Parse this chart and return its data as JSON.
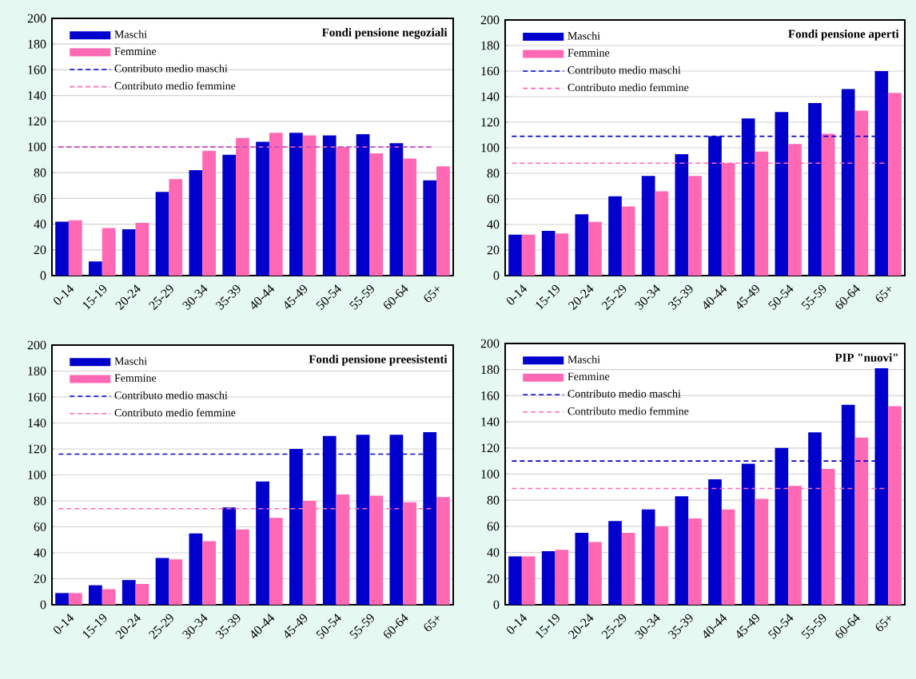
{
  "chart_data": [
    {
      "type": "bar",
      "title": "Fondi pensione negoziali",
      "categories": [
        "0-14",
        "15-19",
        "20-24",
        "25-29",
        "30-34",
        "35-39",
        "40-44",
        "45-49",
        "50-54",
        "55-59",
        "60-64",
        "65+"
      ],
      "series": [
        {
          "name": "Maschi",
          "color": "#0000cc",
          "values": [
            42,
            11,
            36,
            65,
            82,
            94,
            104,
            111,
            109,
            110,
            103,
            74
          ]
        },
        {
          "name": "Femmine",
          "color": "#ff69b4",
          "values": [
            43,
            37,
            41,
            75,
            97,
            107,
            111,
            109,
            100,
            95,
            91,
            85
          ]
        }
      ],
      "ref_lines": [
        {
          "axis": "y",
          "value": 100,
          "label": "Contributo medio maschi",
          "color": "#0000cc",
          "line_style": "dashed"
        },
        {
          "axis": "y",
          "value": 100,
          "label": "Contributo medio femmine",
          "color": "#ff69b4",
          "line_style": "dashed"
        }
      ],
      "ylim": [
        0,
        200
      ],
      "yticks": [
        0,
        20,
        40,
        60,
        80,
        100,
        120,
        140,
        160,
        180,
        200
      ],
      "grid": "y",
      "legend": "top left"
    },
    {
      "type": "bar",
      "title": "Fondi pensione aperti",
      "categories": [
        "0-14",
        "15-19",
        "20-24",
        "25-29",
        "30-34",
        "35-39",
        "40-44",
        "45-49",
        "50-54",
        "55-59",
        "60-64",
        "65+"
      ],
      "series": [
        {
          "name": "Maschi",
          "color": "#0000cc",
          "values": [
            32,
            35,
            48,
            62,
            78,
            95,
            109,
            123,
            128,
            135,
            146,
            160
          ]
        },
        {
          "name": "Femmine",
          "color": "#ff69b4",
          "values": [
            32,
            33,
            42,
            54,
            66,
            78,
            88,
            97,
            103,
            111,
            129,
            143
          ]
        }
      ],
      "ref_lines": [
        {
          "axis": "y",
          "value": 109,
          "label": "Contributo medio maschi",
          "color": "#0000cc",
          "line_style": "dashed"
        },
        {
          "axis": "y",
          "value": 88,
          "label": "Contributo medio femmine",
          "color": "#ff69b4",
          "line_style": "dashed"
        }
      ],
      "ylim": [
        0,
        200
      ],
      "yticks": [
        0,
        20,
        40,
        60,
        80,
        100,
        120,
        140,
        160,
        180,
        200
      ],
      "grid": "y",
      "legend": "top left"
    },
    {
      "type": "bar",
      "title": "Fondi pensione preesistenti",
      "categories": [
        "0-14",
        "15-19",
        "20-24",
        "25-29",
        "30-34",
        "35-39",
        "40-44",
        "45-49",
        "50-54",
        "55-59",
        "60-64",
        "65+"
      ],
      "series": [
        {
          "name": "Maschi",
          "color": "#0000cc",
          "values": [
            9,
            15,
            19,
            36,
            55,
            75,
            95,
            120,
            130,
            131,
            131,
            133
          ]
        },
        {
          "name": "Femmine",
          "color": "#ff69b4",
          "values": [
            9,
            12,
            16,
            35,
            49,
            58,
            67,
            80,
            85,
            84,
            79,
            83
          ]
        }
      ],
      "ref_lines": [
        {
          "axis": "y",
          "value": 116,
          "label": "Contributo medio maschi",
          "color": "#0000cc",
          "line_style": "dashed"
        },
        {
          "axis": "y",
          "value": 74,
          "label": "Contributo medio femmine",
          "color": "#ff69b4",
          "line_style": "dashed"
        }
      ],
      "ylim": [
        0,
        200
      ],
      "yticks": [
        0,
        20,
        40,
        60,
        80,
        100,
        120,
        140,
        160,
        180,
        200
      ],
      "grid": "y",
      "legend": "top left"
    },
    {
      "type": "bar",
      "title": "PIP \"nuovi\"",
      "categories": [
        "0-14",
        "15-19",
        "20-24",
        "25-29",
        "30-34",
        "35-39",
        "40-44",
        "45-49",
        "50-54",
        "55-59",
        "60-64",
        "65+"
      ],
      "series": [
        {
          "name": "Maschi",
          "color": "#0000cc",
          "values": [
            37,
            41,
            55,
            64,
            73,
            83,
            96,
            108,
            120,
            132,
            153,
            181
          ]
        },
        {
          "name": "Femmine",
          "color": "#ff69b4",
          "values": [
            37,
            42,
            48,
            55,
            60,
            66,
            73,
            81,
            91,
            104,
            128,
            152
          ]
        }
      ],
      "ref_lines": [
        {
          "axis": "y",
          "value": 110,
          "label": "Contributo medio maschi",
          "color": "#0000cc",
          "line_style": "dashed"
        },
        {
          "axis": "y",
          "value": 89,
          "label": "Contributo medio femmine",
          "color": "#ff69b4",
          "line_style": "dashed"
        }
      ],
      "ylim": [
        0,
        200
      ],
      "yticks": [
        0,
        20,
        40,
        60,
        80,
        100,
        120,
        140,
        160,
        180,
        200
      ],
      "grid": "y",
      "legend": "top left"
    }
  ]
}
